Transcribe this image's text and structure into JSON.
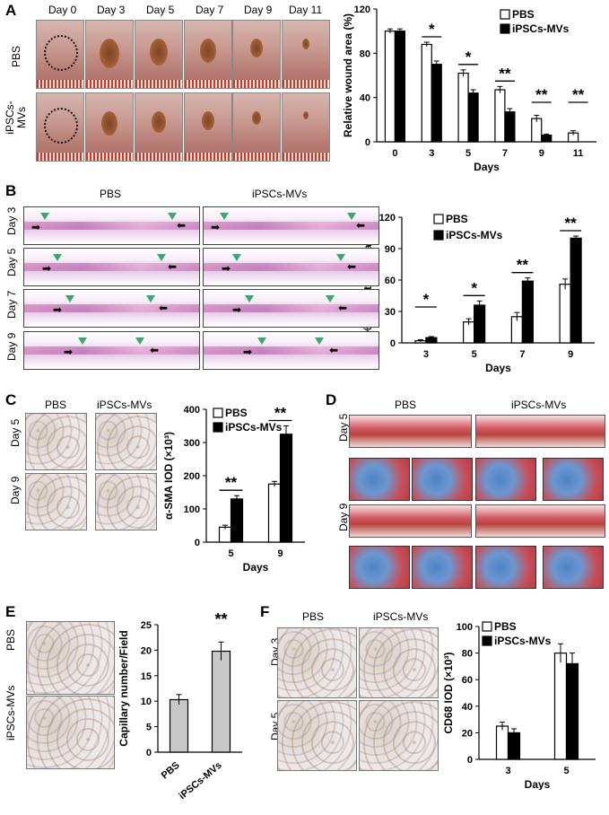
{
  "panels": {
    "a": "A",
    "b": "B",
    "c": "C",
    "d": "D",
    "e": "E",
    "f": "F"
  },
  "labels": {
    "pbs": "PBS",
    "ips": "iPSCs-MVs",
    "ips_split_1": "iPSCs-",
    "ips_split_2": "MVs",
    "days_axis": "Days",
    "day0": "Day 0",
    "day3": "Day 3",
    "day5": "Day 5",
    "day7": "Day 7",
    "day9": "Day 9",
    "day11": "Day 11"
  },
  "chart_data": [
    {
      "id": "A",
      "type": "bar",
      "categories": [
        "0",
        "3",
        "5",
        "7",
        "9",
        "11"
      ],
      "series": [
        {
          "name": "PBS",
          "values": [
            100,
            88,
            62,
            47,
            21,
            8
          ],
          "errors": [
            2,
            2,
            3,
            3,
            3,
            2
          ],
          "fill": "#ffffff"
        },
        {
          "name": "iPSCs-MVs",
          "values": [
            100,
            70,
            44,
            27,
            6,
            0
          ],
          "errors": [
            2,
            3,
            3,
            3,
            1,
            0
          ],
          "fill": "#000000"
        }
      ],
      "ylabel": "Relative wound area (%)",
      "xlabel": "Days",
      "ylim": [
        0,
        120
      ],
      "yticks": [
        0,
        40,
        80,
        120
      ],
      "significance": [
        "",
        "*",
        "*",
        "**",
        "**",
        "**"
      ],
      "legend": "top-right"
    },
    {
      "id": "B",
      "type": "bar",
      "categories": [
        "3",
        "5",
        "7",
        "9"
      ],
      "series": [
        {
          "name": "PBS",
          "values": [
            2,
            20,
            25,
            56
          ],
          "errors": [
            1,
            3,
            4,
            5
          ],
          "fill": "#ffffff"
        },
        {
          "name": "iPSCs-MVs",
          "values": [
            5,
            36,
            59,
            100
          ],
          "errors": [
            1,
            4,
            3,
            2
          ],
          "fill": "#000000"
        }
      ],
      "ylabel": "% Re-epithelialization",
      "xlabel": "Days",
      "ylim": [
        0,
        120
      ],
      "yticks": [
        0,
        30,
        60,
        90,
        120
      ],
      "significance": [
        "*",
        "*",
        "**",
        "**"
      ],
      "legend": "top-left"
    },
    {
      "id": "C",
      "type": "bar",
      "categories": [
        "5",
        "9"
      ],
      "series": [
        {
          "name": "PBS",
          "values": [
            45,
            175
          ],
          "errors": [
            6,
            8
          ],
          "fill": "#ffffff"
        },
        {
          "name": "iPSCs-MVs",
          "values": [
            130,
            325
          ],
          "errors": [
            10,
            25
          ],
          "fill": "#000000"
        }
      ],
      "ylabel": "α-SMA IOD (×10³)",
      "xlabel": "Days",
      "ylim": [
        0,
        400
      ],
      "yticks": [
        0,
        100,
        200,
        300,
        400
      ],
      "significance": [
        "**",
        "**"
      ],
      "legend": "top-left"
    },
    {
      "id": "E",
      "type": "bar",
      "categories": [
        "PBS",
        "iPSCs-MVs"
      ],
      "series": [
        {
          "name": "Capillary",
          "values": [
            10.3,
            19.8
          ],
          "errors": [
            1,
            1.8
          ],
          "fill": "#c8c8c8"
        }
      ],
      "ylabel": "Capillary number/Field",
      "ylim": [
        0,
        25
      ],
      "yticks": [
        0,
        5,
        10,
        15,
        20,
        25
      ],
      "significance": [
        "",
        "**"
      ]
    },
    {
      "id": "F",
      "type": "bar",
      "categories": [
        "3",
        "5"
      ],
      "series": [
        {
          "name": "PBS",
          "values": [
            25,
            80
          ],
          "errors": [
            3,
            7
          ],
          "fill": "#ffffff"
        },
        {
          "name": "iPSCs-MVs",
          "values": [
            20,
            72
          ],
          "errors": [
            3,
            8
          ],
          "fill": "#000000"
        }
      ],
      "ylabel": "CD68 IOD (×10³)",
      "xlabel": "Days",
      "ylim": [
        0,
        100
      ],
      "yticks": [
        0,
        20,
        40,
        60,
        80,
        100
      ],
      "significance": [
        "",
        ""
      ],
      "legend": "top-left"
    }
  ]
}
